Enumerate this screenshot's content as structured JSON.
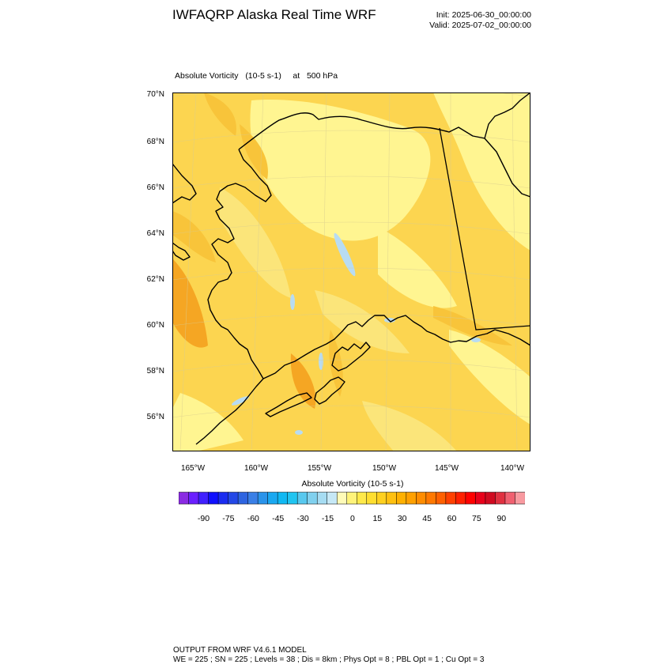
{
  "header": {
    "title": "IWFAQRP Alaska Real Time WRF",
    "init": "Init: 2025-06-30_00:00:00",
    "valid": "Valid: 2025-07-02_00:00:00"
  },
  "plot": {
    "field": "Absolute Vorticity",
    "units": "(10-5 s-1)",
    "level_prefix": "at",
    "level": "500 hPa"
  },
  "map": {
    "lat_labels": [
      "70°N",
      "68°N",
      "66°N",
      "64°N",
      "62°N",
      "60°N",
      "58°N",
      "56°N"
    ],
    "lon_labels": [
      "165°W",
      "160°W",
      "155°W",
      "150°W",
      "145°W",
      "140°W"
    ],
    "fill_colors": {
      "background": "#fcd550",
      "light": "#fff591",
      "pale": "#fbe57a",
      "medium": "#f8c43a",
      "strong": "#f5a623",
      "negative": "#b8dcf2"
    }
  },
  "colorbar": {
    "label": "Absolute Vorticity  (10-5 s-1)",
    "colors": [
      "#8a2be2",
      "#6a1fff",
      "#4020ff",
      "#1010ff",
      "#1a2cf0",
      "#2448e6",
      "#2e64e0",
      "#3a7fe6",
      "#2a93ea",
      "#1aa8f0",
      "#10b8f2",
      "#20c4f0",
      "#58c8ee",
      "#80d0ee",
      "#a6dcf2",
      "#c6e8f6",
      "#fffbb8",
      "#fff37a",
      "#ffe94a",
      "#ffde30",
      "#ffd020",
      "#ffc010",
      "#ffb000",
      "#ffa000",
      "#ff8c00",
      "#ff7800",
      "#ff6000",
      "#ff4000",
      "#ff2000",
      "#ff0000",
      "#e8001a",
      "#d00a20",
      "#e03040",
      "#f06070",
      "#f89aa0"
    ],
    "ticks": [
      "-90",
      "-75",
      "-60",
      "-45",
      "-30",
      "-15",
      "0",
      "15",
      "30",
      "45",
      "60",
      "75",
      "90"
    ]
  },
  "footer": {
    "line1": "OUTPUT FROM WRF V4.6.1 MODEL",
    "line2": "WE = 225 ; SN = 225 ; Levels = 38 ; Dis = 8km ; Phys Opt = 8 ; PBL Opt = 1 ; Cu Opt = 3"
  }
}
